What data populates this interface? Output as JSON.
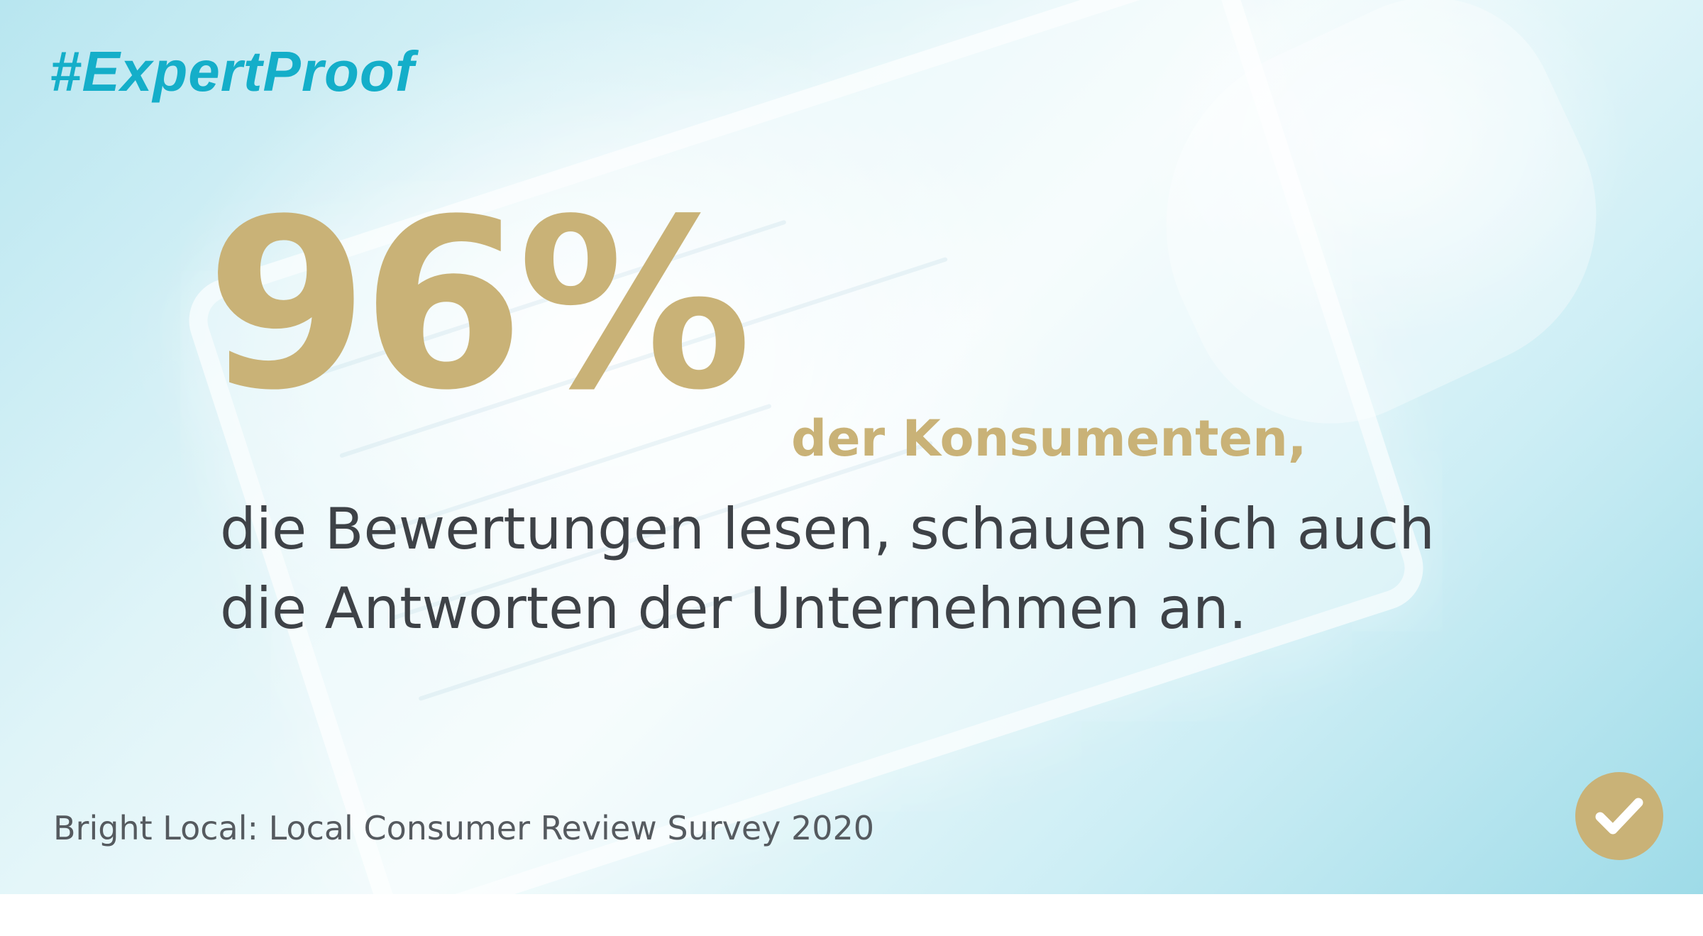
{
  "hashtag": "#ExpertProof",
  "statistic": {
    "value": "96%",
    "subject": "der Konsumenten,"
  },
  "body": {
    "line1": "die Bewertungen lesen, schauen sich auch",
    "line2": "die Antworten der Unternehmen an."
  },
  "source": "Bright Local: Local Consumer Review Survey 2020",
  "badge": {
    "icon": "checkmark-icon"
  },
  "colors": {
    "accent_gold": "#c9b277",
    "hashtag_blue": "#14aec9",
    "text_dark": "#3e4247"
  }
}
